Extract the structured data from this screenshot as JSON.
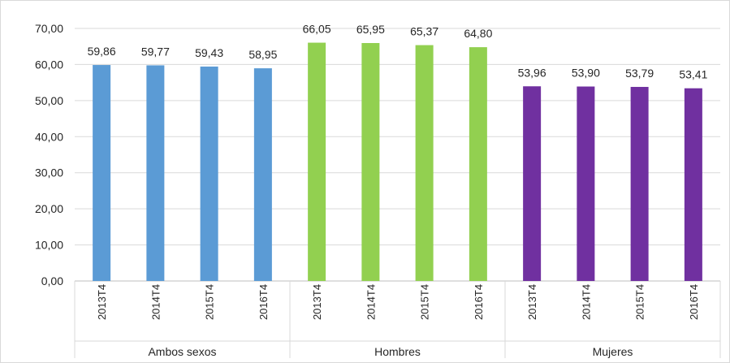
{
  "chart_data": {
    "type": "bar",
    "groups": [
      {
        "name": "Ambos sexos",
        "color": "#5b9bd5",
        "categories": [
          "2013T4",
          "2014T4",
          "2015T4",
          "2016T4"
        ],
        "values": [
          59.86,
          59.77,
          59.43,
          58.95
        ],
        "labels": [
          "59,86",
          "59,77",
          "59,43",
          "58,95"
        ]
      },
      {
        "name": "Hombres",
        "color": "#92d050",
        "categories": [
          "2013T4",
          "2014T4",
          "2015T4",
          "2016T4"
        ],
        "values": [
          66.05,
          65.95,
          65.37,
          64.8
        ],
        "labels": [
          "66,05",
          "65,95",
          "65,37",
          "64,80"
        ]
      },
      {
        "name": "Mujeres",
        "color": "#7030a0",
        "categories": [
          "2013T4",
          "2014T4",
          "2015T4",
          "2016T4"
        ],
        "values": [
          53.96,
          53.9,
          53.79,
          53.41
        ],
        "labels": [
          "53,96",
          "53,90",
          "53,79",
          "53,41"
        ]
      }
    ],
    "ylim": [
      0,
      70
    ],
    "yticks": [
      0,
      10,
      20,
      30,
      40,
      50,
      60,
      70
    ],
    "ytick_labels": [
      "0,00",
      "10,00",
      "20,00",
      "30,00",
      "40,00",
      "50,00",
      "60,00",
      "70,00"
    ],
    "grid": true,
    "legend": "none"
  }
}
